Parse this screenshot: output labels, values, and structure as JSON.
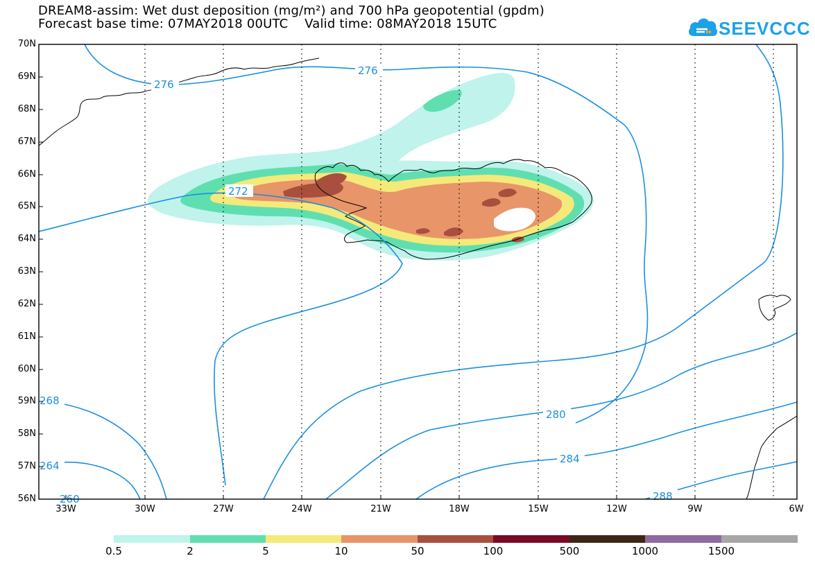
{
  "header": {
    "title_line1": "DREAM8-assim: Wet dust deposition (mg/m²) and 700 hPa geopotential (gpdm)",
    "title_line2": "Forecast base time: 07MAY2018 00UTC    Valid time: 08MAY2018 15UTC"
  },
  "logo": {
    "text": "SEEVCCC",
    "icon": "cloud-icon",
    "color": "#1da1e8"
  },
  "map": {
    "lat_labels": [
      "70N",
      "69N",
      "68N",
      "67N",
      "66N",
      "65N",
      "64N",
      "63N",
      "62N",
      "61N",
      "60N",
      "59N",
      "58N",
      "57N",
      "56N"
    ],
    "lon_labels": [
      "33W",
      "30W",
      "27W",
      "24W",
      "21W",
      "18W",
      "15W",
      "12W",
      "9W",
      "6W"
    ],
    "lat_range": [
      56,
      70
    ],
    "lon_range": [
      -34.5,
      -6
    ],
    "grid": "dotted meridians",
    "contour_color": "#1a8fe0",
    "contour_labels": [
      "276",
      "276",
      "272",
      "268",
      "264",
      "260",
      "280",
      "284",
      "288"
    ]
  },
  "colorbar": {
    "ticks": [
      "0.5",
      "2",
      "5",
      "10",
      "50",
      "100",
      "500",
      "1000",
      "1500"
    ],
    "colors": [
      "#bff3ec",
      "#5fdfb0",
      "#f5e97a",
      "#e8956a",
      "#a84f3e",
      "#7a0a22",
      "#3e2616",
      "#8e6a9e",
      "#a6a6a6"
    ]
  }
}
